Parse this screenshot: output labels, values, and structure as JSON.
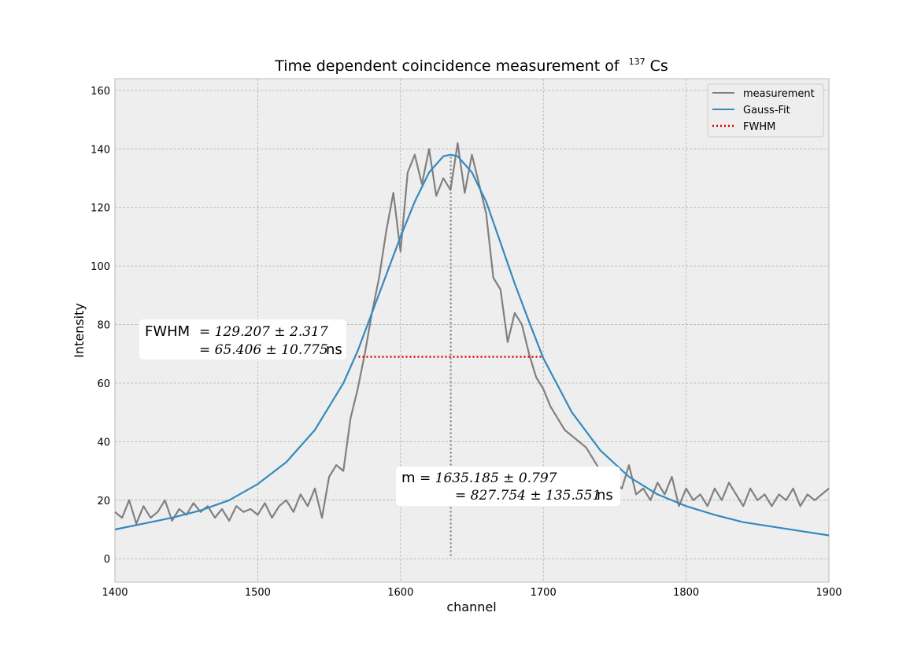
{
  "chart_data": {
    "type": "line",
    "title": "Time dependent coincidence measurement of",
    "title_isotope": {
      "superscript": "137",
      "symbol": "Cs"
    },
    "xlabel": "channel",
    "ylabel": "Intensity",
    "xlim": [
      1400,
      1900
    ],
    "ylim": [
      -8,
      164
    ],
    "xticks": [
      1400,
      1500,
      1600,
      1700,
      1800,
      1900
    ],
    "yticks": [
      0,
      20,
      40,
      60,
      80,
      100,
      120,
      140,
      160
    ],
    "grid": true,
    "legend_position": "top-right",
    "colors": {
      "measurement": "#808080",
      "fit": "#348ABD",
      "fwhm": "#E00000",
      "center_line": "#808080",
      "axes_bg": "#EEEEEE",
      "grid": "#B2B2B2"
    },
    "series": [
      {
        "name": "measurement",
        "style": "solid",
        "x": [
          1400,
          1405,
          1410,
          1415,
          1420,
          1425,
          1430,
          1435,
          1440,
          1445,
          1450,
          1455,
          1460,
          1465,
          1470,
          1475,
          1480,
          1485,
          1490,
          1495,
          1500,
          1505,
          1510,
          1515,
          1520,
          1525,
          1530,
          1535,
          1540,
          1545,
          1550,
          1555,
          1560,
          1565,
          1570,
          1575,
          1580,
          1585,
          1590,
          1595,
          1600,
          1605,
          1610,
          1615,
          1620,
          1625,
          1630,
          1635,
          1640,
          1645,
          1650,
          1655,
          1660,
          1665,
          1670,
          1675,
          1680,
          1685,
          1690,
          1695,
          1700,
          1705,
          1710,
          1715,
          1720,
          1725,
          1730,
          1735,
          1740,
          1745,
          1750,
          1755,
          1760,
          1765,
          1770,
          1775,
          1780,
          1785,
          1790,
          1795,
          1800,
          1805,
          1810,
          1815,
          1820,
          1825,
          1830,
          1835,
          1840,
          1845,
          1850,
          1855,
          1860,
          1865,
          1870,
          1875,
          1880,
          1885,
          1890,
          1895,
          1900
        ],
        "y": [
          16,
          14,
          20,
          12,
          18,
          14,
          16,
          20,
          13,
          17,
          15,
          19,
          16,
          18,
          14,
          17,
          13,
          18,
          16,
          17,
          15,
          19,
          14,
          18,
          20,
          16,
          22,
          18,
          24,
          14,
          28,
          32,
          30,
          48,
          58,
          70,
          84,
          96,
          112,
          125,
          105,
          132,
          138,
          128,
          140,
          124,
          130,
          126,
          142,
          125,
          138,
          128,
          118,
          96,
          92,
          74,
          84,
          80,
          70,
          62,
          58,
          52,
          48,
          44,
          42,
          40,
          38,
          34,
          30,
          28,
          26,
          24,
          32,
          22,
          24,
          20,
          26,
          22,
          28,
          18,
          24,
          20,
          22,
          18,
          24,
          20,
          26,
          22,
          18,
          24,
          20,
          22,
          18,
          22,
          20,
          24,
          18,
          22,
          20,
          22,
          24
        ]
      },
      {
        "name": "Gauss-Fit",
        "style": "solid",
        "x": [
          1400,
          1420,
          1440,
          1460,
          1480,
          1500,
          1520,
          1540,
          1560,
          1570,
          1580,
          1590,
          1600,
          1610,
          1620,
          1630,
          1635,
          1640,
          1650,
          1660,
          1670,
          1680,
          1690,
          1700,
          1720,
          1740,
          1760,
          1780,
          1800,
          1820,
          1840,
          1860,
          1880,
          1900
        ],
        "y": [
          10,
          12,
          14,
          16.5,
          20,
          25.5,
          33,
          44,
          60,
          71,
          84,
          97,
          110,
          122,
          132,
          137.5,
          138,
          137.5,
          132,
          122,
          108,
          94,
          81,
          68.5,
          50,
          37,
          28,
          22,
          18,
          15,
          12.5,
          11,
          9.5,
          8
        ]
      },
      {
        "name": "FWHM",
        "style": "dotted",
        "x": [
          1570.6,
          1699.8
        ],
        "y": [
          69,
          69
        ]
      }
    ],
    "center_line": {
      "x": 1635.185,
      "y": [
        1,
        138
      ]
    }
  },
  "legend": {
    "measurement": "measurement",
    "fit": "Gauss-Fit",
    "fwhm": "FWHM"
  },
  "annotations": {
    "fwhm": {
      "label": "FWHM",
      "line1": "= 129.207 ± 2.317",
      "line2_value": "= 65.406 ± 10.775",
      "unit": "ns"
    },
    "mean": {
      "label": "m",
      "line1": "= 1635.185 ± 0.797",
      "line2_value": "= 827.754 ± 135.551",
      "unit": "ns"
    }
  }
}
